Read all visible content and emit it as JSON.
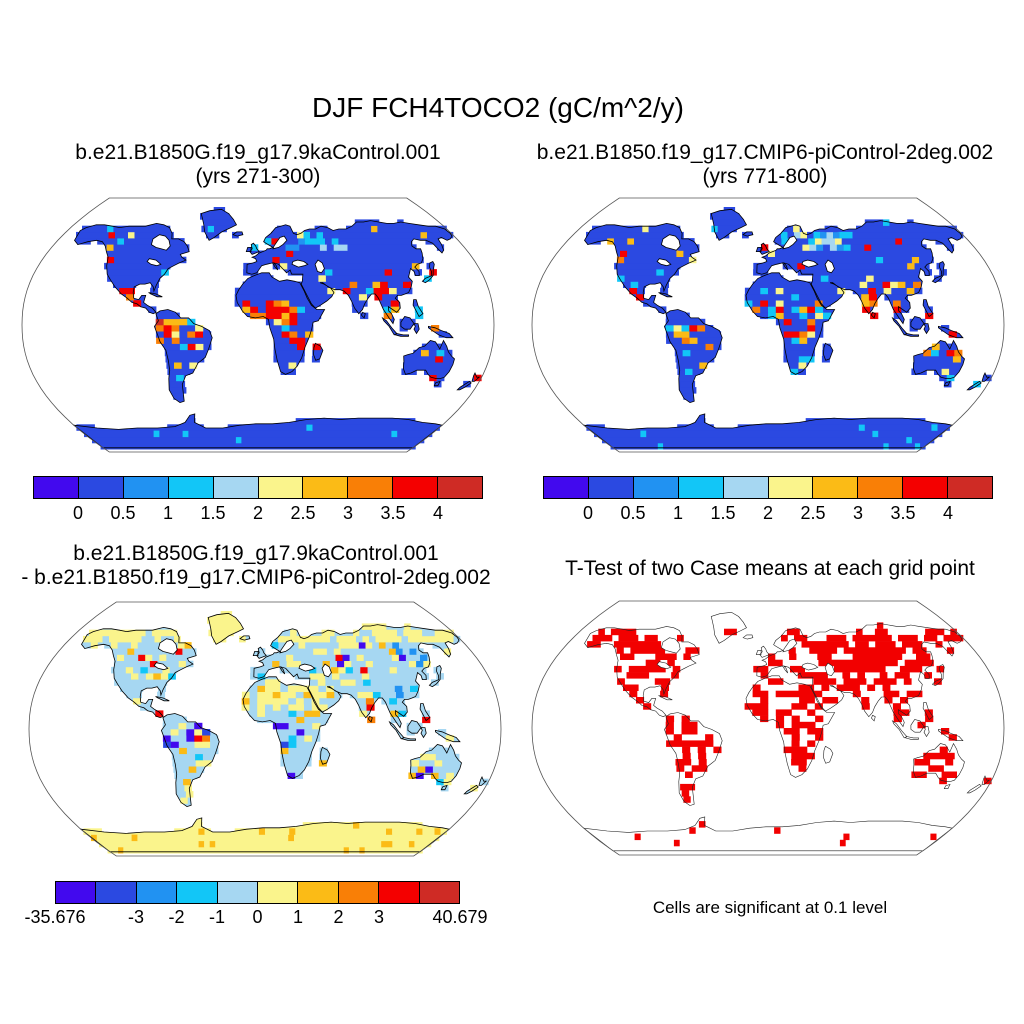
{
  "figure_title": "DJF FCH4TOCO2 (gC/m^2/y)",
  "palette": [
    "#4209EE",
    "#2B49E1",
    "#2192F2",
    "#12C6F7",
    "#A6D7F2",
    "#FAF48C",
    "#FBBB16",
    "#F97F06",
    "#F40000",
    "#CF2B25"
  ],
  "ttest_red": "#F20000",
  "panels": {
    "top_left": {
      "title": "b.e21.B1850G.f19_g17.9kaControl.001",
      "subtitle": "(yrs 271-300)",
      "colorbar_ticks": [
        {
          "label": "0",
          "pos": 0.1
        },
        {
          "label": "0.5",
          "pos": 0.2
        },
        {
          "label": "1",
          "pos": 0.3
        },
        {
          "label": "1.5",
          "pos": 0.4
        },
        {
          "label": "2",
          "pos": 0.5
        },
        {
          "label": "2.5",
          "pos": 0.6
        },
        {
          "label": "3",
          "pos": 0.7
        },
        {
          "label": "3.5",
          "pos": 0.8
        },
        {
          "label": "4",
          "pos": 0.9
        }
      ]
    },
    "top_right": {
      "title": "b.e21.B1850.f19_g17.CMIP6-piControl-2deg.002",
      "subtitle": "(yrs 771-800)",
      "colorbar_ticks": [
        {
          "label": "0",
          "pos": 0.1
        },
        {
          "label": "0.5",
          "pos": 0.2
        },
        {
          "label": "1",
          "pos": 0.3
        },
        {
          "label": "1.5",
          "pos": 0.4
        },
        {
          "label": "2",
          "pos": 0.5
        },
        {
          "label": "2.5",
          "pos": 0.6
        },
        {
          "label": "3",
          "pos": 0.7
        },
        {
          "label": "3.5",
          "pos": 0.8
        },
        {
          "label": "4",
          "pos": 0.9
        }
      ]
    },
    "bottom_left": {
      "title": "b.e21.B1850G.f19_g17.9kaControl.001",
      "subtitle": "- b.e21.B1850.f19_g17.CMIP6-piControl-2deg.002",
      "colorbar_ticks": [
        {
          "label": "-35.676",
          "pos": 0
        },
        {
          "label": "-3",
          "pos": 0.2
        },
        {
          "label": "-2",
          "pos": 0.3
        },
        {
          "label": "-1",
          "pos": 0.4
        },
        {
          "label": "0",
          "pos": 0.5
        },
        {
          "label": "1",
          "pos": 0.6
        },
        {
          "label": "2",
          "pos": 0.7
        },
        {
          "label": "3",
          "pos": 0.8
        },
        {
          "label": "40.679",
          "pos": 1
        }
      ]
    },
    "bottom_right": {
      "title": "T-Test of two Case means at each grid point",
      "caption": "Cells are significant at 0.1 level"
    }
  },
  "chart_data": [
    {
      "type": "heatmap",
      "panel": "top-left",
      "title": "b.e21.B1850G.f19_g17.9kaControl.001 (yrs 271-300)",
      "variable": "FCH4TOCO2",
      "season": "DJF",
      "units": "gC/m^2/y",
      "projection": "Robinson world map",
      "colorbar_levels": [
        0,
        0.5,
        1,
        1.5,
        2,
        2.5,
        3,
        3.5,
        4
      ],
      "palette": [
        "#4209EE",
        "#2B49E1",
        "#2192F2",
        "#12C6F7",
        "#A6D7F2",
        "#FAF48C",
        "#FBBB16",
        "#F97F06",
        "#F40000",
        "#CF2B25"
      ],
      "summary": "Most land cells in 0-0.5 bin (royal blue); cyan 1-2 band over N Europe and NW Russia; scattered 2 to >4 (yellow-orange-red) cells over Amazon, Sahel, Congo, India, S China, SE Asia, Maritime Continent, N Australia, Central America and mid-latitude coasts; ocean white."
    },
    {
      "type": "heatmap",
      "panel": "top-right",
      "title": "b.e21.B1850.f19_g17.CMIP6-piControl-2deg.002 (yrs 771-800)",
      "variable": "FCH4TOCO2",
      "season": "DJF",
      "units": "gC/m^2/y",
      "projection": "Robinson world map",
      "colorbar_levels": [
        0,
        0.5,
        1,
        1.5,
        2,
        2.5,
        3,
        3.5,
        4
      ],
      "palette": [
        "#4209EE",
        "#2B49E1",
        "#2192F2",
        "#12C6F7",
        "#A6D7F2",
        "#FAF48C",
        "#FBBB16",
        "#F97F06",
        "#F40000",
        "#CF2B25"
      ],
      "summary": "Pattern nearly identical to left panel: blue land, cyan N-Europe/Russia band, warm tropical hotspot cells."
    },
    {
      "type": "heatmap",
      "panel": "bottom-left",
      "title": "b.e21.B1850G.f19_g17.9kaControl.001 - b.e21.B1850.f19_g17.CMIP6-piControl-2deg.002",
      "projection": "Robinson world map",
      "colorbar_levels": [
        "-35.676",
        -3,
        -2,
        -1,
        0,
        1,
        2,
        3,
        "40.679"
      ],
      "data_min": -35.676,
      "data_max": 40.679,
      "palette": [
        "#4209EE",
        "#2B49E1",
        "#2192F2",
        "#12C6F7",
        "#A6D7F2",
        "#FAF48C",
        "#FBBB16",
        "#F97F06",
        "#F40000",
        "#CF2B25"
      ],
      "summary": "Difference map: most land -1 to 0 (light blue); pale-yellow 0-1 over Sahara, Arabia, high latitudes, Greenland and Antarctica; clusters below -3 (dark blue/violet) over Amazon, Congo and SE Asia; scattered above 2 (orange/red) over Sahel, E India coast and N Australia."
    },
    {
      "type": "heatmap",
      "panel": "bottom-right",
      "title": "T-Test of two Case means at each grid point",
      "caption": "Cells are significant at 0.1 level",
      "significance_level": 0.1,
      "cell_color": "#F20000",
      "summary": "Red cells mark grid points where the two case means differ significantly at the 0.1 level; dense over most vegetated land and Siberia, sparse over Greenland, Arctic islands and Antarctica; ocean blank."
    }
  ]
}
